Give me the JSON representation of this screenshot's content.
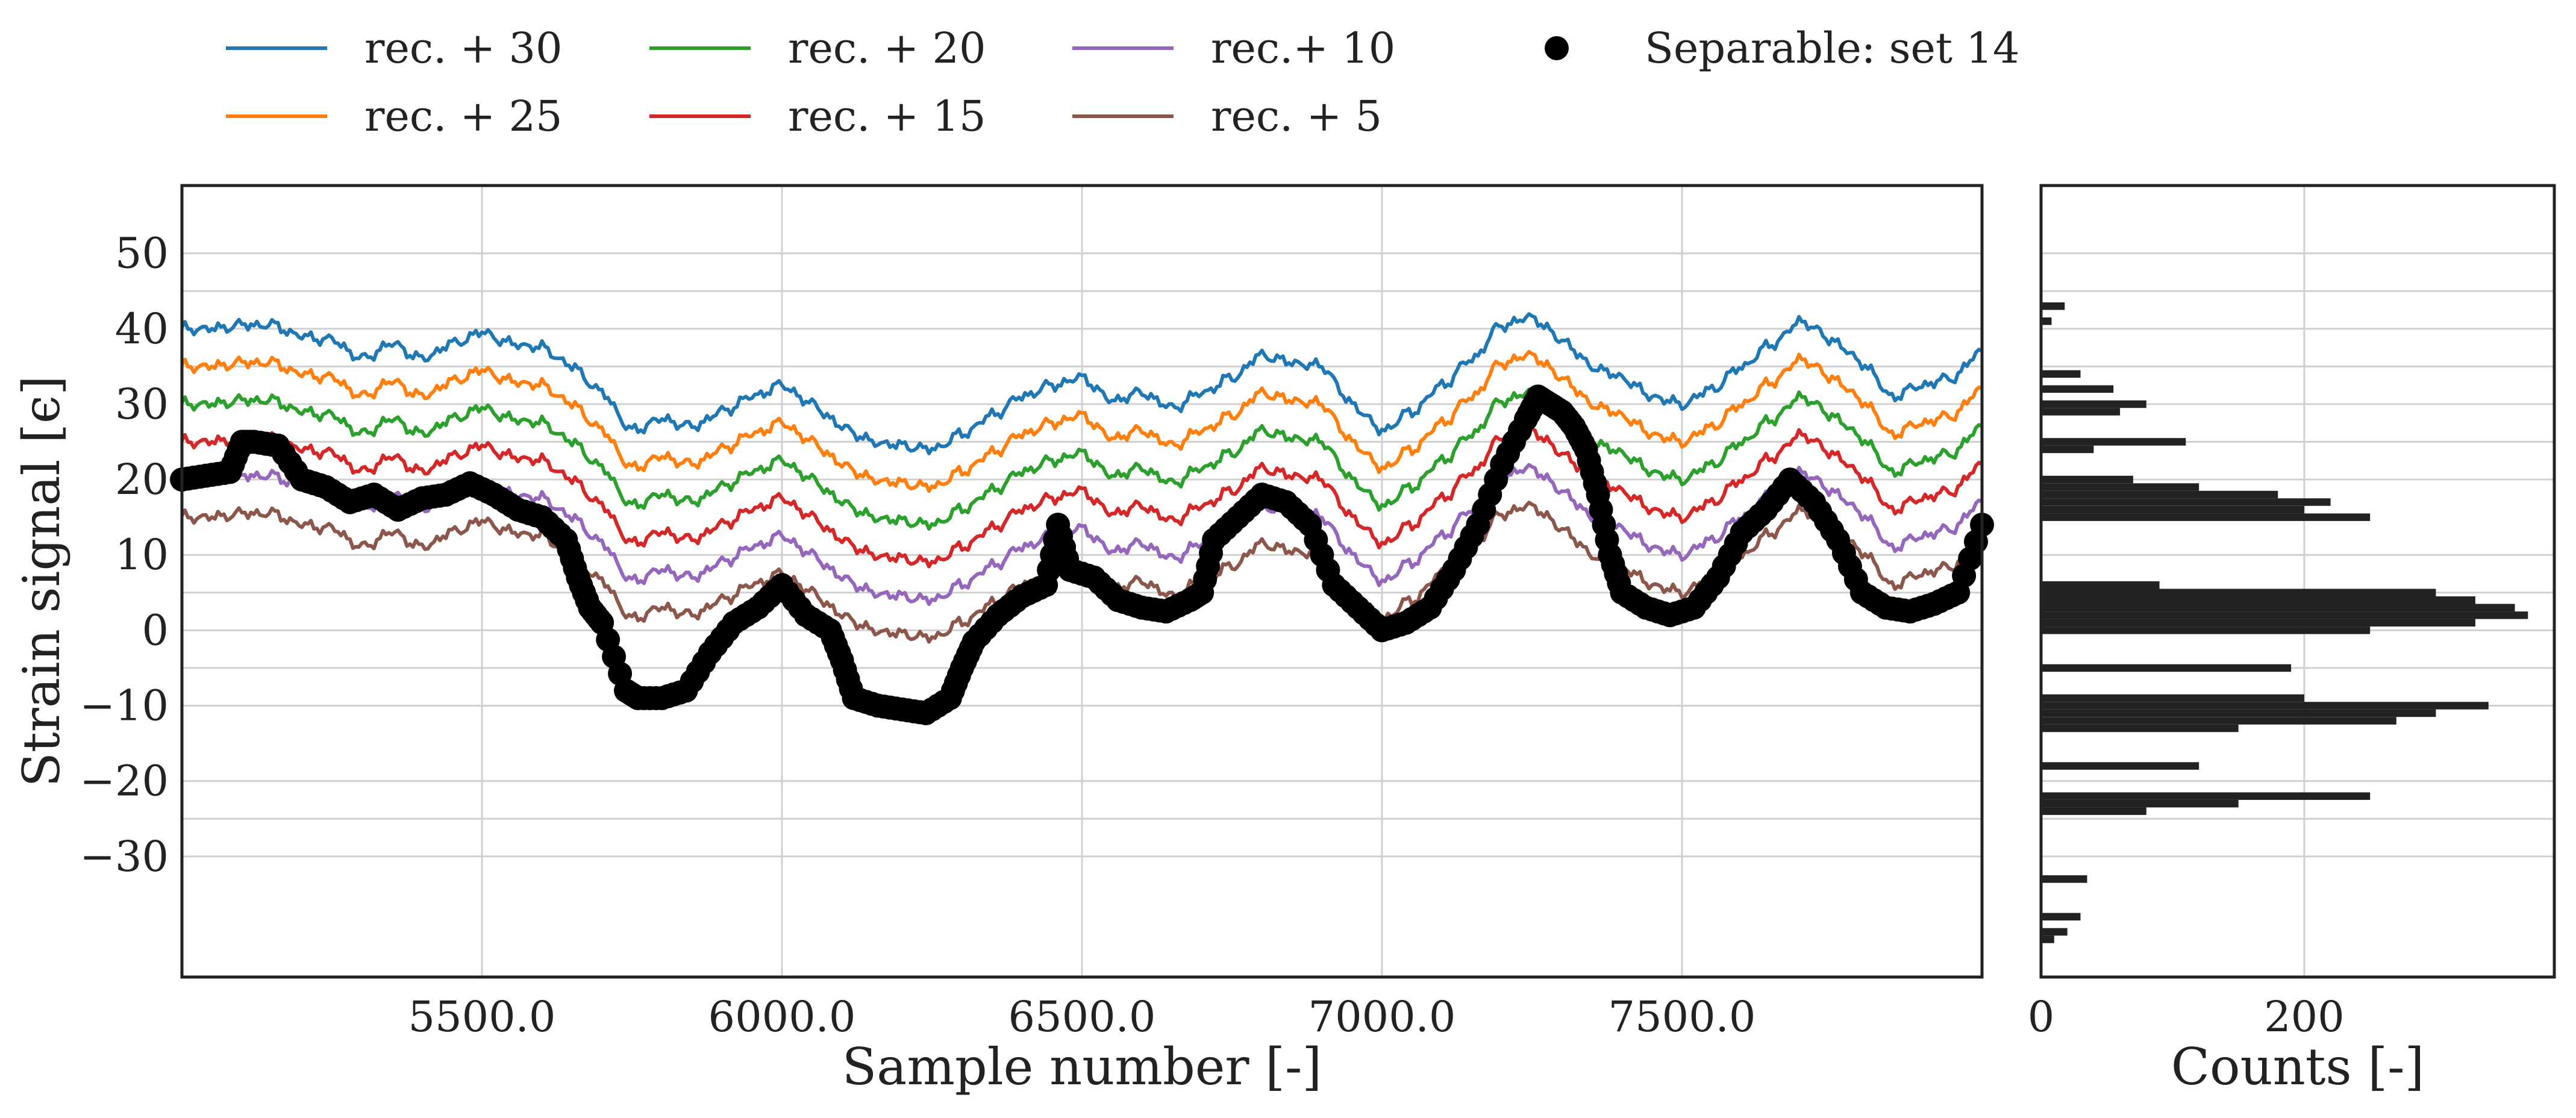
{
  "chart_data": [
    {
      "type": "line",
      "panel": "main",
      "title": "",
      "xlabel": "Sample number [-]",
      "ylabel": "Strain signal [ϵ]",
      "xlim": [
        5000,
        8000
      ],
      "ylim": [
        -46,
        59
      ],
      "xticks": [
        5500,
        6000,
        6500,
        7000,
        7500
      ],
      "xtick_labels": [
        "5500.0",
        "6000.0",
        "6500.0",
        "7000.0",
        "7500.0"
      ],
      "yticks": [
        -30,
        -20,
        -10,
        0,
        10,
        20,
        30,
        40,
        50
      ],
      "ytick_labels": [
        "−30",
        "−20",
        "−10",
        "0",
        "10",
        "20",
        "30",
        "40",
        "50"
      ],
      "minor_gridlines_y": [
        -25,
        -5,
        5,
        25,
        35,
        45
      ],
      "base_signal": {
        "x": [
          5000,
          5050,
          5100,
          5150,
          5200,
          5250,
          5300,
          5350,
          5400,
          5450,
          5500,
          5550,
          5600,
          5650,
          5700,
          5750,
          5800,
          5850,
          5900,
          5950,
          6000,
          6050,
          6100,
          6150,
          6200,
          6250,
          6300,
          6350,
          6400,
          6450,
          6500,
          6550,
          6600,
          6650,
          6700,
          6750,
          6800,
          6850,
          6900,
          6950,
          7000,
          7050,
          7100,
          7150,
          7200,
          7250,
          7300,
          7350,
          7400,
          7450,
          7500,
          7550,
          7600,
          7650,
          7700,
          7750,
          7800,
          7850,
          7900,
          7950,
          8000
        ],
        "y": [
          10,
          10,
          10.5,
          10.5,
          9,
          8.5,
          6,
          8,
          6,
          8,
          9.5,
          8,
          7.5,
          5,
          1.5,
          -3.5,
          -2,
          -3,
          -1,
          1,
          2.5,
          0,
          -3,
          -5,
          -5.5,
          -6,
          -4,
          -1.5,
          1,
          2.5,
          3.5,
          0.5,
          1.5,
          -0.5,
          1.5,
          3.5,
          6.5,
          5.5,
          5,
          0,
          -3.5,
          -1,
          2.5,
          6,
          10.5,
          11.5,
          8.5,
          5,
          3.5,
          1,
          0,
          2,
          5,
          8,
          11,
          8.5,
          5.5,
          1,
          2.5,
          3.5,
          7
        ]
      },
      "series": [
        {
          "name": "rec. + 30",
          "offset": 30,
          "color": "#1f77b4"
        },
        {
          "name": "rec. + 25",
          "offset": 25,
          "color": "#ff7f0e"
        },
        {
          "name": "rec. + 20",
          "offset": 20,
          "color": "#2ca02c"
        },
        {
          "name": "rec. + 15",
          "offset": 15,
          "color": "#d62728"
        },
        {
          "name": "rec.+ 10",
          "offset": 10,
          "color": "#9467bd"
        },
        {
          "name": "rec. + 5",
          "offset": 5,
          "color": "#8c564b"
        }
      ],
      "scatter": {
        "name": "Separable: set 14",
        "color": "#000000",
        "x": [
          5000,
          5040,
          5080,
          5100,
          5120,
          5160,
          5200,
          5240,
          5280,
          5320,
          5360,
          5400,
          5440,
          5480,
          5520,
          5560,
          5600,
          5640,
          5660,
          5680,
          5700,
          5740,
          5760,
          5800,
          5840,
          5880,
          5920,
          5960,
          6000,
          6040,
          6080,
          6100,
          6120,
          6160,
          6200,
          6240,
          6280,
          6300,
          6320,
          6360,
          6400,
          6440,
          6460,
          6480,
          6520,
          6560,
          6600,
          6640,
          6680,
          6700,
          6720,
          6760,
          6800,
          6840,
          6880,
          6920,
          6960,
          7000,
          7040,
          7080,
          7120,
          7160,
          7200,
          7240,
          7260,
          7280,
          7300,
          7320,
          7340,
          7360,
          7380,
          7400,
          7440,
          7480,
          7520,
          7560,
          7600,
          7640,
          7680,
          7720,
          7760,
          7800,
          7840,
          7880,
          7920,
          7960,
          8000
        ],
        "y": [
          20,
          20.5,
          21,
          25,
          25,
          24.5,
          20,
          19,
          17,
          18,
          16,
          17.5,
          18,
          19.5,
          18,
          16,
          15,
          12,
          7,
          3,
          1,
          -8,
          -9,
          -9,
          -8,
          -3,
          1,
          3,
          6,
          2,
          0,
          -4,
          -9,
          -10,
          -10.5,
          -11,
          -9,
          -5,
          -1.5,
          2,
          4.5,
          6,
          14,
          8,
          7,
          4,
          3,
          2.5,
          4,
          5,
          12,
          15,
          18,
          17,
          14,
          6,
          3,
          0,
          1,
          3,
          8,
          14,
          22,
          28,
          31,
          30,
          29,
          27,
          24,
          18,
          10,
          5,
          3,
          2,
          3,
          7,
          13,
          16,
          20,
          17,
          12,
          5,
          3,
          2.5,
          3.5,
          5,
          14
        ]
      }
    },
    {
      "type": "bar",
      "panel": "histogram",
      "orientation": "horizontal",
      "title": "",
      "xlabel": "Counts [-]",
      "ylabel": "",
      "xlim": [
        0,
        390
      ],
      "xticks": [
        0,
        200
      ],
      "xtick_labels": [
        "0",
        "200"
      ],
      "ylim": [
        -46,
        59
      ],
      "bins": [
        {
          "y": 43,
          "count": 18
        },
        {
          "y": 41,
          "count": 8
        },
        {
          "y": 34,
          "count": 30
        },
        {
          "y": 32,
          "count": 55
        },
        {
          "y": 30,
          "count": 80
        },
        {
          "y": 29,
          "count": 60
        },
        {
          "y": 25,
          "count": 110
        },
        {
          "y": 24,
          "count": 40
        },
        {
          "y": 20,
          "count": 70
        },
        {
          "y": 19,
          "count": 120
        },
        {
          "y": 18,
          "count": 180
        },
        {
          "y": 17,
          "count": 220
        },
        {
          "y": 16,
          "count": 200
        },
        {
          "y": 15,
          "count": 250
        },
        {
          "y": 6,
          "count": 90
        },
        {
          "y": 5,
          "count": 300
        },
        {
          "y": 4,
          "count": 330
        },
        {
          "y": 3,
          "count": 360
        },
        {
          "y": 2,
          "count": 370
        },
        {
          "y": 1,
          "count": 330
        },
        {
          "y": 0,
          "count": 250
        },
        {
          "y": -5,
          "count": 190
        },
        {
          "y": -9,
          "count": 200
        },
        {
          "y": -10,
          "count": 340
        },
        {
          "y": -11,
          "count": 300
        },
        {
          "y": -12,
          "count": 270
        },
        {
          "y": -13,
          "count": 150
        },
        {
          "y": -18,
          "count": 120
        },
        {
          "y": -22,
          "count": 250
        },
        {
          "y": -23,
          "count": 150
        },
        {
          "y": -24,
          "count": 80
        },
        {
          "y": -33,
          "count": 35
        },
        {
          "y": -38,
          "count": 30
        },
        {
          "y": -40,
          "count": 20
        },
        {
          "y": -41,
          "count": 10
        }
      ]
    }
  ],
  "legend": {
    "placement": "top",
    "entries": [
      {
        "label": "rec. + 30",
        "color": "#1f77b4",
        "marker": "line"
      },
      {
        "label": "rec. + 25",
        "color": "#ff7f0e",
        "marker": "line"
      },
      {
        "label": "rec. + 20",
        "color": "#2ca02c",
        "marker": "line"
      },
      {
        "label": "rec. + 15",
        "color": "#d62728",
        "marker": "line"
      },
      {
        "label": "rec.+ 10",
        "color": "#9467bd",
        "marker": "line"
      },
      {
        "label": "rec. + 5",
        "color": "#8c564b",
        "marker": "line"
      },
      {
        "label": "Separable: set 14",
        "color": "#000000",
        "marker": "dot"
      }
    ]
  }
}
